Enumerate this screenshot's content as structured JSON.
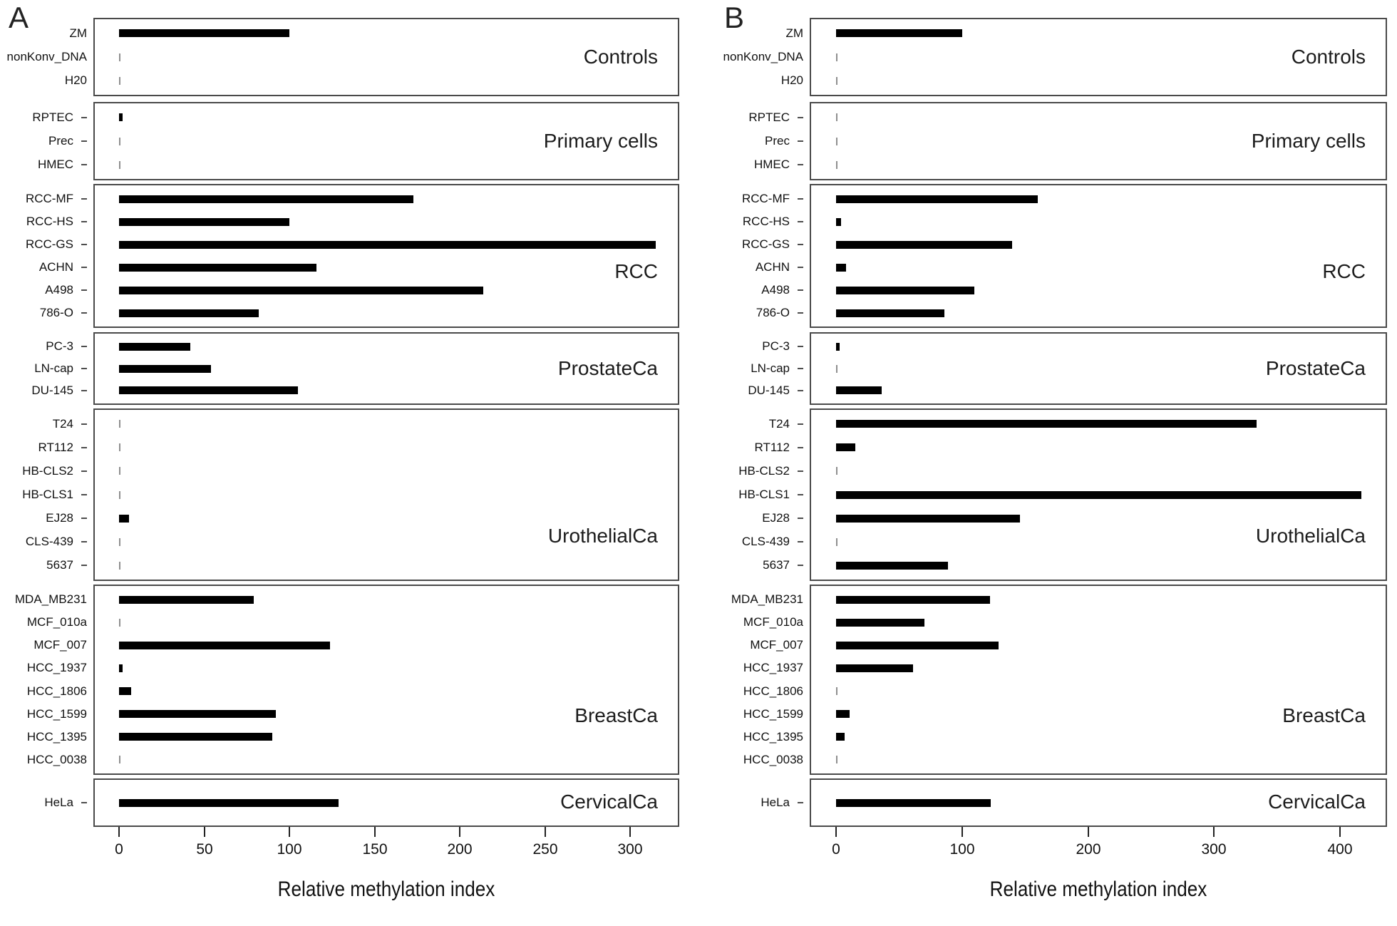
{
  "figure": {
    "background": "#ffffff"
  },
  "colors": {
    "bar": "#000000",
    "near_zero_mark": "#8f8f8f",
    "box_border": "#4a4a4a",
    "text": "#111111"
  },
  "chart_data": [
    {
      "panel_label": "A",
      "type": "bar",
      "orientation": "horizontal",
      "xlabel": "Relative methylation index",
      "x_ticks": [
        0,
        50,
        100,
        150,
        200,
        250,
        300
      ],
      "x_axis_range_shown": [
        0,
        300
      ],
      "grid": false,
      "legend": false,
      "groups": [
        {
          "label": "Controls",
          "row_ticks": false,
          "rows": [
            {
              "name": "ZM",
              "value": 100
            },
            {
              "name": "nonKonv_DNA",
              "value": 0.5
            },
            {
              "name": "H20",
              "value": 0.5
            }
          ]
        },
        {
          "label": "Primary cells",
          "row_ticks": true,
          "rows": [
            {
              "name": "RPTEC",
              "value": 2
            },
            {
              "name": "Prec",
              "value": 0.7
            },
            {
              "name": "HMEC",
              "value": 0.7
            }
          ]
        },
        {
          "label": "RCC",
          "row_ticks": true,
          "rows": [
            {
              "name": "RCC-MF",
              "value": 173
            },
            {
              "name": "RCC-HS",
              "value": 100
            },
            {
              "name": "RCC-GS",
              "value": 315
            },
            {
              "name": "ACHN",
              "value": 116
            },
            {
              "name": "A498",
              "value": 214
            },
            {
              "name": "786-O",
              "value": 82
            }
          ]
        },
        {
          "label": "ProstateCa",
          "row_ticks": true,
          "rows": [
            {
              "name": "PC-3",
              "value": 42
            },
            {
              "name": "LN-cap",
              "value": 54
            },
            {
              "name": "DU-145",
              "value": 105
            }
          ]
        },
        {
          "label": "UrothelialCa",
          "row_ticks": true,
          "rows": [
            {
              "name": "T24",
              "value": 1
            },
            {
              "name": "RT112",
              "value": 0.6
            },
            {
              "name": "HB-CLS2",
              "value": 0.6
            },
            {
              "name": "HB-CLS1",
              "value": 1
            },
            {
              "name": "EJ28",
              "value": 6
            },
            {
              "name": "CLS-439",
              "value": 0.6
            },
            {
              "name": "5637",
              "value": 0.6
            }
          ]
        },
        {
          "label": "BreastCa",
          "row_ticks": false,
          "rows": [
            {
              "name": "MDA_MB231",
              "value": 79
            },
            {
              "name": "MCF_010a",
              "value": 0.5
            },
            {
              "name": "MCF_007",
              "value": 124
            },
            {
              "name": "HCC_1937",
              "value": 2
            },
            {
              "name": "HCC_1806",
              "value": 7
            },
            {
              "name": "HCC_1599",
              "value": 92
            },
            {
              "name": "HCC_1395",
              "value": 90
            },
            {
              "name": "HCC_0038",
              "value": 0.5
            }
          ]
        },
        {
          "label": "CervicalCa",
          "row_ticks": true,
          "rows": [
            {
              "name": "HeLa",
              "value": 129
            }
          ]
        }
      ]
    },
    {
      "panel_label": "B",
      "type": "bar",
      "orientation": "horizontal",
      "xlabel": "Relative methylation index",
      "x_ticks": [
        0,
        100,
        200,
        300,
        400
      ],
      "x_axis_range_shown": [
        0,
        400
      ],
      "grid": false,
      "legend": false,
      "groups": [
        {
          "label": "Controls",
          "row_ticks": false,
          "rows": [
            {
              "name": "ZM",
              "value": 100
            },
            {
              "name": "nonKonv_DNA",
              "value": 0.5
            },
            {
              "name": "H20",
              "value": 0.5
            }
          ]
        },
        {
          "label": "Primary cells",
          "row_ticks": true,
          "rows": [
            {
              "name": "RPTEC",
              "value": 0.7
            },
            {
              "name": "Prec",
              "value": 0.7
            },
            {
              "name": "HMEC",
              "value": 0.7
            }
          ]
        },
        {
          "label": "RCC",
          "row_ticks": true,
          "rows": [
            {
              "name": "RCC-MF",
              "value": 160
            },
            {
              "name": "RCC-HS",
              "value": 4
            },
            {
              "name": "RCC-GS",
              "value": 140
            },
            {
              "name": "ACHN",
              "value": 8
            },
            {
              "name": "A498",
              "value": 110
            },
            {
              "name": "786-O",
              "value": 86
            }
          ]
        },
        {
          "label": "ProstateCa",
          "row_ticks": true,
          "rows": [
            {
              "name": "PC-3",
              "value": 3
            },
            {
              "name": "LN-cap",
              "value": 0.5
            },
            {
              "name": "DU-145",
              "value": 36
            }
          ]
        },
        {
          "label": "UrothelialCa",
          "row_ticks": true,
          "rows": [
            {
              "name": "T24",
              "value": 334
            },
            {
              "name": "RT112",
              "value": 15
            },
            {
              "name": "HB-CLS2",
              "value": 0.5
            },
            {
              "name": "HB-CLS1",
              "value": 417
            },
            {
              "name": "EJ28",
              "value": 146
            },
            {
              "name": "CLS-439",
              "value": 0.5
            },
            {
              "name": "5637",
              "value": 89
            }
          ]
        },
        {
          "label": "BreastCa",
          "row_ticks": false,
          "rows": [
            {
              "name": "MDA_MB231",
              "value": 122
            },
            {
              "name": "MCF_010a",
              "value": 70
            },
            {
              "name": "MCF_007",
              "value": 129
            },
            {
              "name": "HCC_1937",
              "value": 61
            },
            {
              "name": "HCC_1806",
              "value": 1
            },
            {
              "name": "HCC_1599",
              "value": 11
            },
            {
              "name": "HCC_1395",
              "value": 7
            },
            {
              "name": "HCC_0038",
              "value": 0.5
            }
          ]
        },
        {
          "label": "CervicalCa",
          "row_ticks": true,
          "rows": [
            {
              "name": "HeLa",
              "value": 123
            }
          ]
        }
      ]
    }
  ]
}
